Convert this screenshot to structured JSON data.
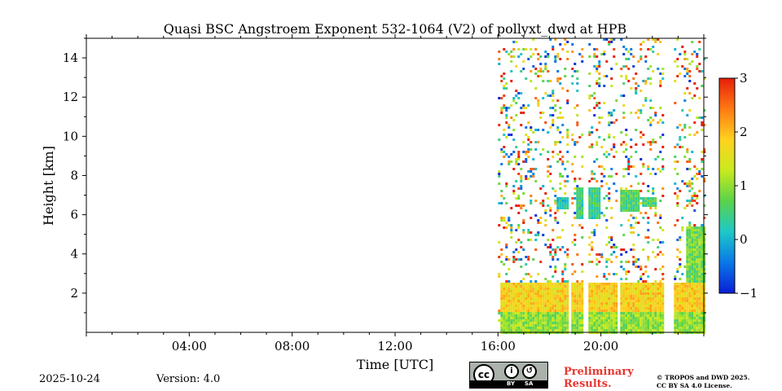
{
  "chart_data": {
    "type": "heatmap",
    "title": "Quasi BSC Angstroem Exponent 532-1064 (V2) of pollyxt_dwd at HPB",
    "xlabel": "Time [UTC]",
    "ylabel": "Height [km]",
    "x_tick_labels": [
      "04:00",
      "08:00",
      "12:00",
      "16:00",
      "20:00"
    ],
    "x_ticks_hours": [
      4,
      8,
      12,
      16,
      20
    ],
    "y_ticks": [
      2,
      4,
      6,
      8,
      10,
      12,
      14
    ],
    "xlim_hours": [
      0,
      24
    ],
    "ylim_km": [
      0,
      15
    ],
    "colorbar": {
      "min": -1,
      "max": 3,
      "ticks": [
        -1,
        0,
        1,
        2,
        3
      ],
      "colors": [
        "#0a1ed8",
        "#0a78e6",
        "#1ec8c8",
        "#5ad24a",
        "#c8ea1e",
        "#ffd21e",
        "#ff7a14",
        "#e61e0a"
      ]
    },
    "data_start_hour": 16.0,
    "data_end_hour": 24.0,
    "gaps_hours": [
      [
        18.72,
        18.82
      ],
      [
        19.32,
        19.42
      ],
      [
        20.6,
        20.72
      ],
      [
        22.45,
        22.75
      ],
      [
        23.05,
        23.12
      ]
    ],
    "regions": [
      {
        "name": "boundary-layer",
        "t0": 16.0,
        "t1": 24.0,
        "h0": 0.0,
        "h1": 1.1,
        "value": 1.0
      },
      {
        "name": "boundary-layer-top",
        "t0": 16.0,
        "t1": 24.0,
        "h0": 1.1,
        "h1": 2.6,
        "value": 1.8
      },
      {
        "name": "aerosol-layer-1",
        "t0": 18.2,
        "t1": 18.7,
        "h0": 6.3,
        "h1": 7.0,
        "value": 0.2
      },
      {
        "name": "aerosol-layer-2",
        "t0": 19.0,
        "t1": 19.9,
        "h0": 5.8,
        "h1": 7.4,
        "value": 0.4
      },
      {
        "name": "aerosol-layer-3",
        "t0": 20.7,
        "t1": 21.5,
        "h0": 6.2,
        "h1": 7.3,
        "value": 0.6
      },
      {
        "name": "aerosol-layer-4",
        "t0": 21.6,
        "t1": 22.1,
        "h0": 6.4,
        "h1": 7.0,
        "value": 0.5
      },
      {
        "name": "plume-late",
        "t0": 23.3,
        "t1": 24.0,
        "h0": 0.5,
        "h1": 5.5,
        "value": 0.8
      }
    ]
  },
  "footer": {
    "date": "2025-10-24",
    "version": "Version: 4.0",
    "preliminary_line1": "Preliminary",
    "preliminary_line2": "Results.",
    "copyright_line1": "© TROPOS and DWD 2025.",
    "copyright_line2": "CC BY SA 4.0 License.",
    "cc_label": "cc",
    "by_label": "BY",
    "sa_label": "SA"
  }
}
